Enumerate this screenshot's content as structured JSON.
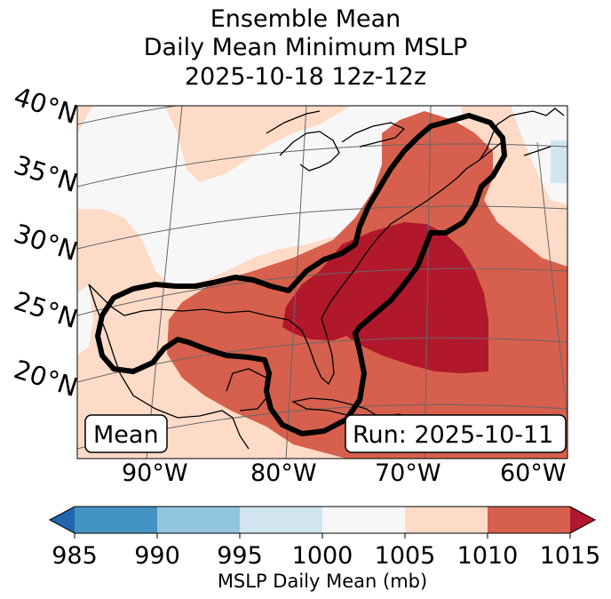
{
  "title_lines": [
    "Ensemble Mean",
    "Daily Mean Minimum MSLP",
    "2025-10-18 12z-12z"
  ],
  "map": {
    "lat_labels": [
      "40°N",
      "35°N",
      "30°N",
      "25°N",
      "20°N"
    ],
    "lon_labels": [
      "90°W",
      "80°W",
      "70°W",
      "60°W"
    ],
    "mean_box": "Mean",
    "run_box": "Run: 2025-10-11"
  },
  "colorbar": {
    "ticks": [
      "985",
      "990",
      "995",
      "1000",
      "1005",
      "1010",
      "1015"
    ],
    "label": "MSLP Daily Mean (mb)",
    "colors": {
      "under": "#2166ac",
      "c985_990": "#4393c3",
      "c990_995": "#92c5de",
      "c995_1000": "#d1e5f0",
      "c1000_1005": "#f7f7f7",
      "c1005_1010": "#fddbc7",
      "c1010_1015": "#d6604d",
      "over": "#b2182b"
    }
  },
  "colors": {
    "contour": "#000000",
    "grid": "#666666",
    "coast": "#000000"
  }
}
